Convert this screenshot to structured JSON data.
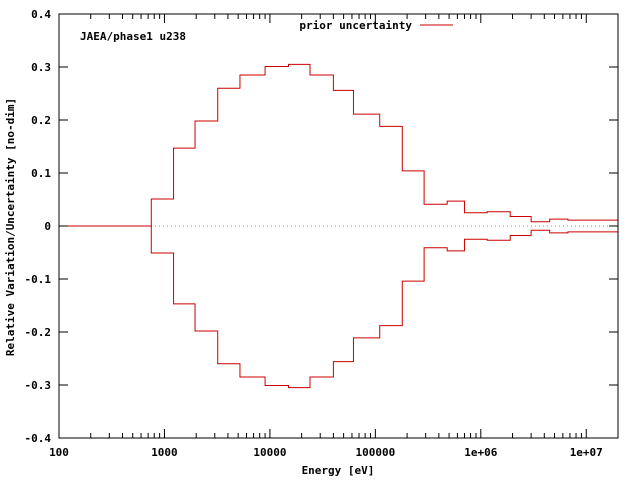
{
  "chart_data": {
    "type": "line",
    "title": "",
    "annotation": "JAEA/phase1 u238",
    "xlabel": "Energy [eV]",
    "ylabel": "Relative Variation/Uncertainty [no-dim]",
    "xscale": "log",
    "xlim": [
      100,
      20000000
    ],
    "ylim": [
      -0.4,
      0.4
    ],
    "x_ticks": [
      100,
      1000,
      10000,
      100000,
      1000000,
      10000000
    ],
    "x_tick_labels": [
      "100",
      "1000",
      "10000",
      "100000",
      "1e+06",
      "1e+07"
    ],
    "y_ticks": [
      0.4,
      0.3,
      0.2,
      0.1,
      0,
      -0.1,
      -0.2,
      -0.3,
      -0.4
    ],
    "y_tick_labels": [
      "0.4",
      "0.3",
      "0.2",
      "0.1",
      "0",
      "-0.1",
      "-0.2",
      "-0.3",
      "-0.4"
    ],
    "legend_position": "top-center",
    "series": [
      {
        "name": "prior uncertainty",
        "color": "#cc0000",
        "style": "step",
        "bin_edges": [
          100,
          750,
          1220,
          1950,
          3200,
          5200,
          9000,
          15000,
          24000,
          40000,
          62000,
          110000,
          180000,
          290000,
          480000,
          700000,
          1150000,
          1900000,
          3000000,
          4500000,
          6700000,
          10000000,
          20000000
        ],
        "upper": [
          0.0,
          0.051,
          0.147,
          0.198,
          0.26,
          0.285,
          0.301,
          0.305,
          0.285,
          0.256,
          0.211,
          0.188,
          0.104,
          0.041,
          0.047,
          0.025,
          0.027,
          0.018,
          0.008,
          0.013,
          0.011,
          0.011
        ],
        "lower": [
          0.0,
          -0.051,
          -0.147,
          -0.198,
          -0.26,
          -0.285,
          -0.301,
          -0.305,
          -0.285,
          -0.256,
          -0.211,
          -0.188,
          -0.104,
          -0.041,
          -0.047,
          -0.025,
          -0.027,
          -0.018,
          -0.008,
          -0.013,
          -0.011,
          -0.011
        ]
      }
    ]
  }
}
